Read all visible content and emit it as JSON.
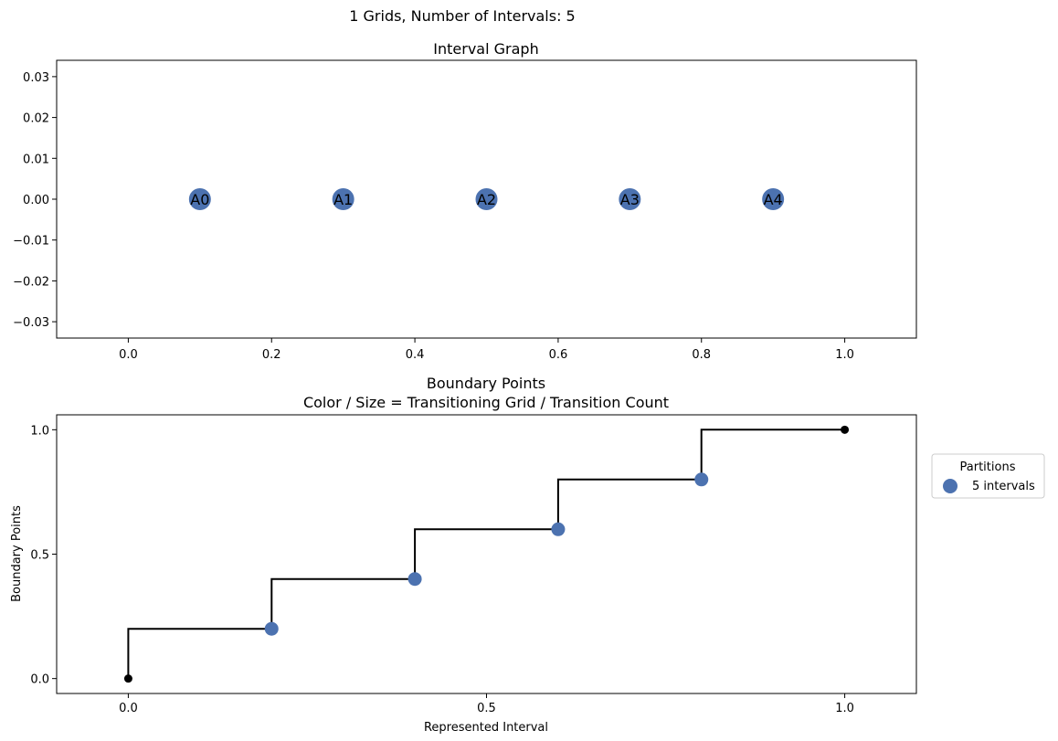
{
  "figure": {
    "suptitle": "1 Grids, Number of Intervals: 5"
  },
  "chart_data": [
    {
      "type": "scatter",
      "title": "Interval Graph",
      "xlabel": "",
      "ylabel": "",
      "xlim": [
        -0.1,
        1.1
      ],
      "ylim": [
        -0.034,
        0.034
      ],
      "xticks": [
        "0.0",
        "0.2",
        "0.4",
        "0.6",
        "0.8",
        "1.0"
      ],
      "yticks": [
        "0.03",
        "0.02",
        "0.01",
        "0.00",
        "−0.01",
        "−0.02",
        "−0.03"
      ],
      "grid": false,
      "node_color": "#4c72b0",
      "points": [
        {
          "x": 0.1,
          "y": 0.0,
          "label": "A0"
        },
        {
          "x": 0.3,
          "y": 0.0,
          "label": "A1"
        },
        {
          "x": 0.5,
          "y": 0.0,
          "label": "A2"
        },
        {
          "x": 0.7,
          "y": 0.0,
          "label": "A3"
        },
        {
          "x": 0.9,
          "y": 0.0,
          "label": "A4"
        }
      ]
    },
    {
      "type": "line",
      "title": "Boundary Points",
      "subtitle": "Color / Size = Transitioning Grid / Transition Count",
      "xlabel": "Represented Interval",
      "ylabel": "Boundary Points",
      "xlim": [
        -0.1,
        1.1
      ],
      "ylim": [
        -0.06,
        1.06
      ],
      "xticks": [
        "0.0",
        "0.5",
        "1.0"
      ],
      "yticks": [
        "1.0",
        "0.5",
        "0.0"
      ],
      "grid": false,
      "line_color": "#000000",
      "step_points": [
        [
          0.0,
          0.0
        ],
        [
          0.0,
          0.2
        ],
        [
          0.2,
          0.2
        ],
        [
          0.2,
          0.4
        ],
        [
          0.4,
          0.4
        ],
        [
          0.4,
          0.6
        ],
        [
          0.6,
          0.6
        ],
        [
          0.6,
          0.8
        ],
        [
          0.8,
          0.8
        ],
        [
          0.8,
          1.0
        ],
        [
          1.0,
          1.0
        ]
      ],
      "endpoints": [
        {
          "x": 0.0,
          "y": 0.0
        },
        {
          "x": 1.0,
          "y": 1.0
        }
      ],
      "series": [
        {
          "name": "5 intervals",
          "color": "#4c72b0",
          "points": [
            {
              "x": 0.2,
              "y": 0.2
            },
            {
              "x": 0.4,
              "y": 0.4
            },
            {
              "x": 0.6,
              "y": 0.6
            },
            {
              "x": 0.8,
              "y": 0.8
            }
          ]
        }
      ],
      "legend": {
        "title": "Partitions",
        "placement": "outside-right",
        "entries": [
          "5 intervals"
        ]
      }
    }
  ]
}
